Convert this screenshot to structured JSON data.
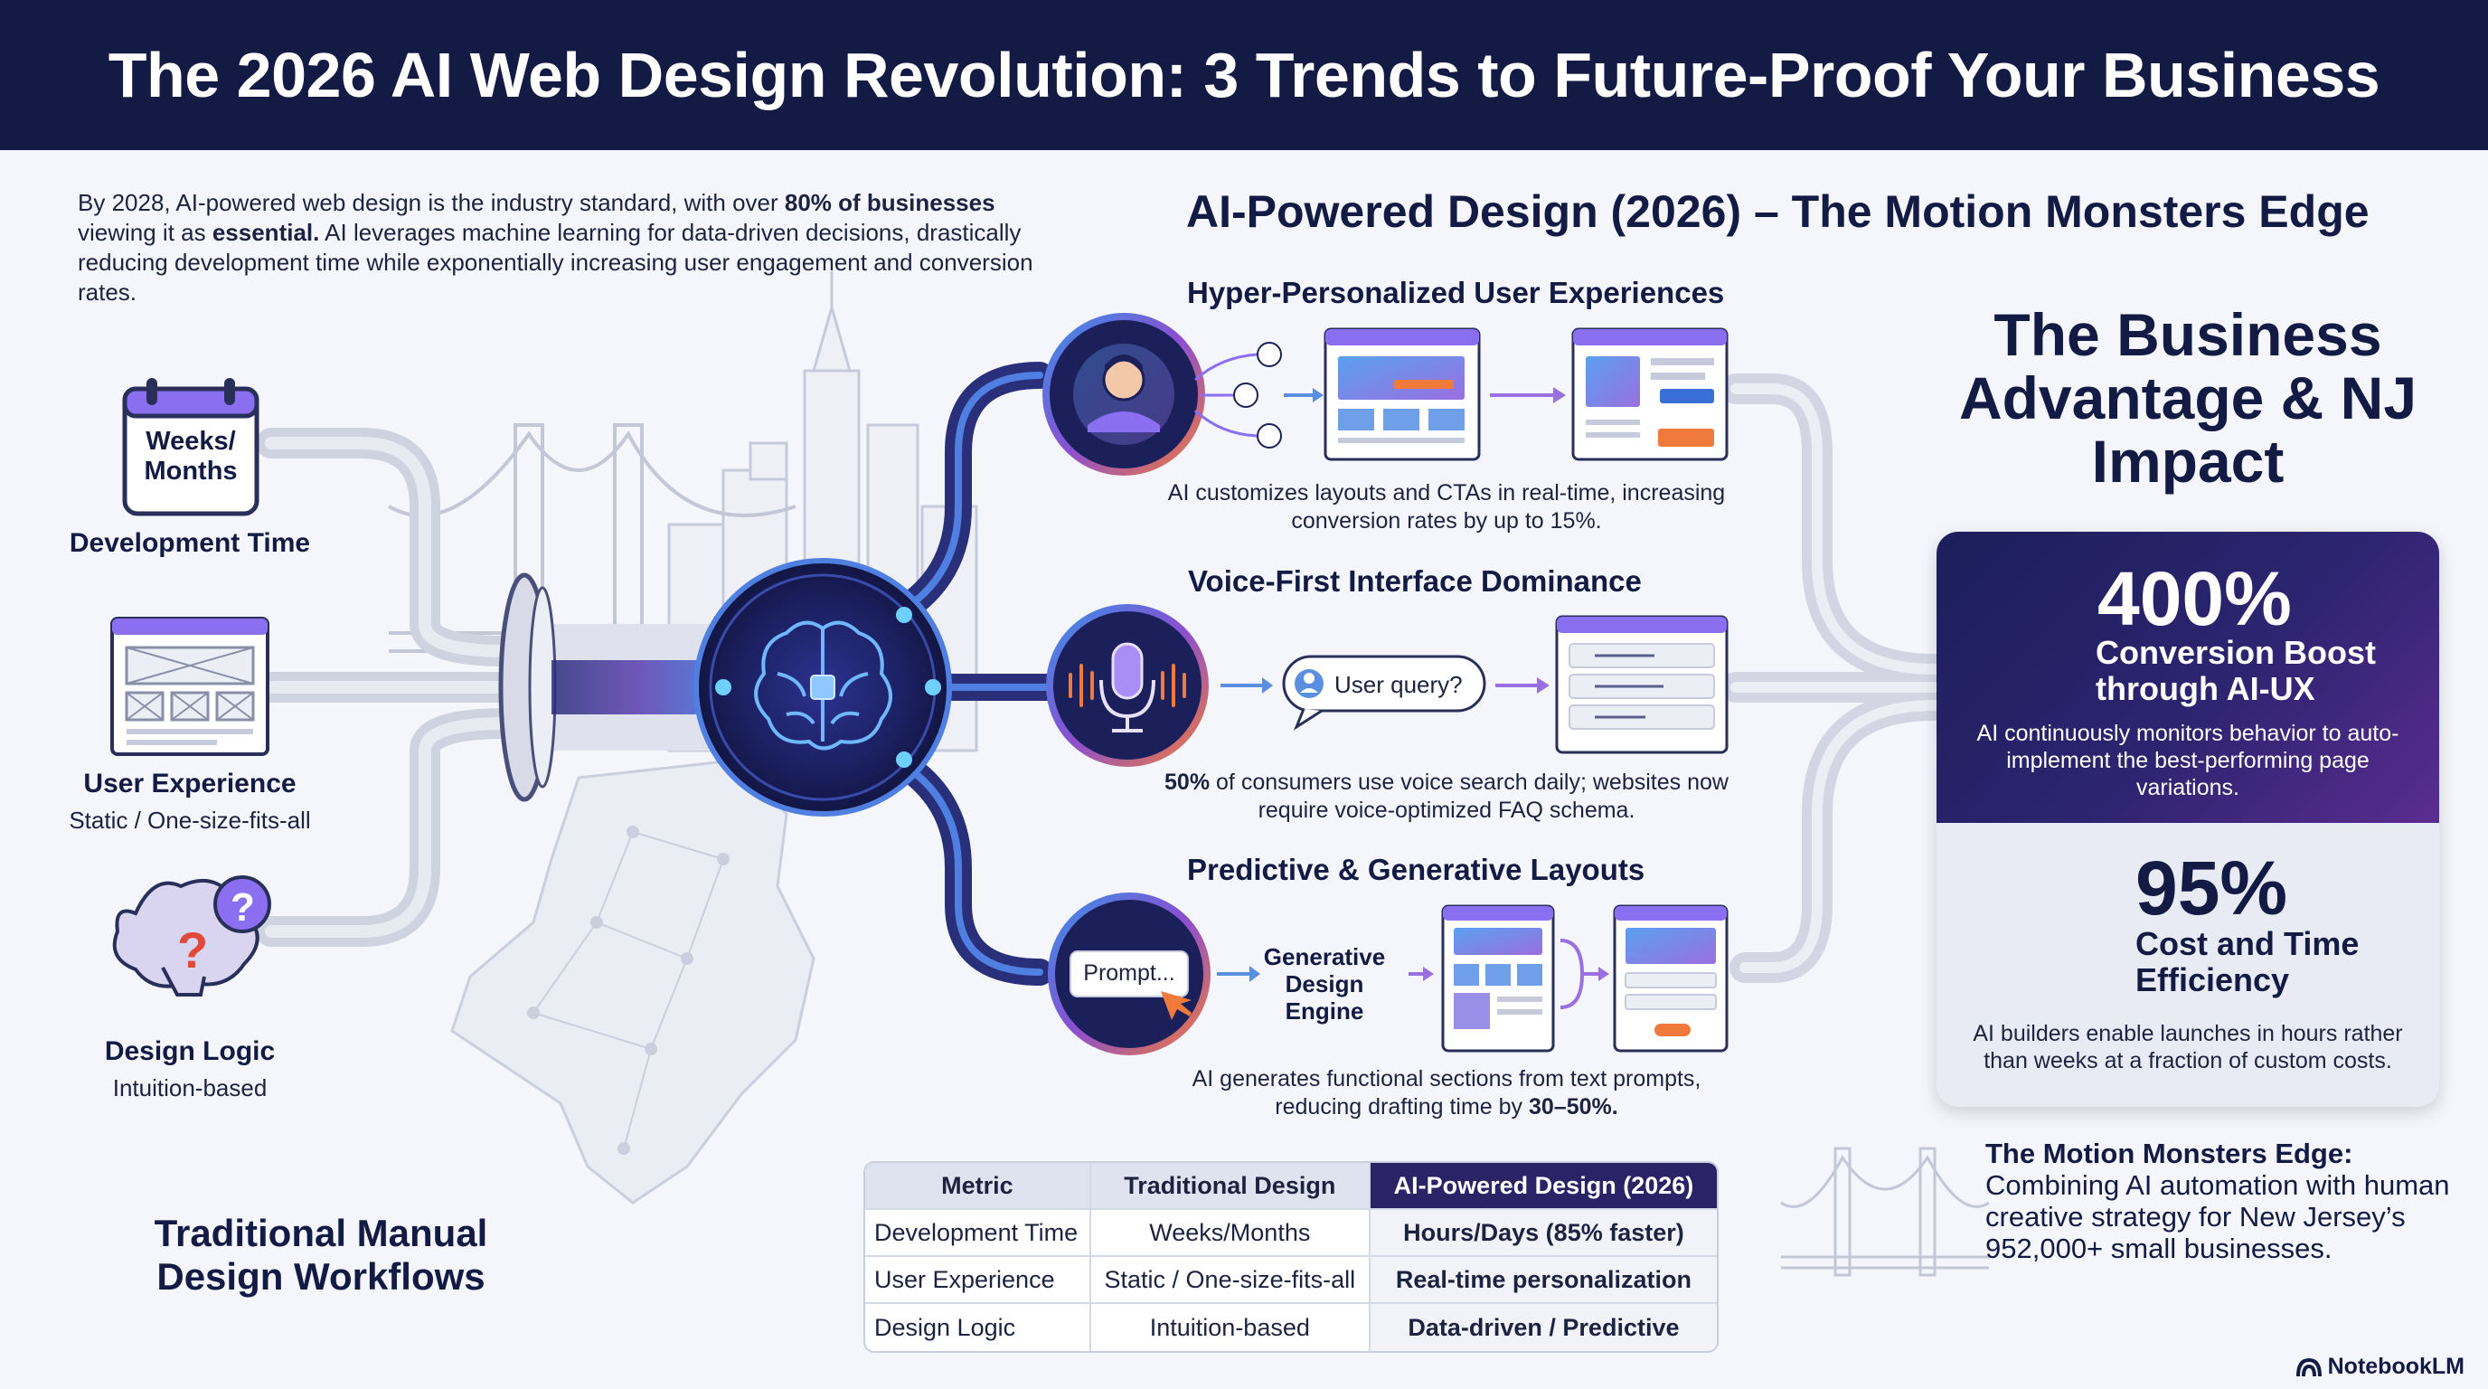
{
  "header": {
    "title": "The 2026 AI Web Design Revolution: 3 Trends to Future-Proof Your Business"
  },
  "intro": {
    "part1": "By 2028, AI-powered web design is the industry standard, with over ",
    "bold1": "80% of businesses",
    "part2": " viewing it as ",
    "bold2": "essential.",
    "part3": " AI leverages machine learning for data-driven decisions, drastically reducing development time while exponentially increasing user engagement and conversion rates."
  },
  "traditional": {
    "items": [
      {
        "title": "Development Time",
        "sub": "",
        "icon": "calendar-icon",
        "icon_text": "Weeks/\nMonths"
      },
      {
        "title": "User Experience",
        "sub": "Static / One-size-fits-all",
        "icon": "static-layout-icon"
      },
      {
        "title": "Design Logic",
        "sub": "Intuition-based",
        "icon": "brain-question-icon"
      }
    ],
    "title": "Traditional Manual Design Workflows"
  },
  "ai_section": {
    "title": "AI-Powered Design (2026) – The Motion Monsters Edge",
    "trends": [
      {
        "title": "Hyper-Personalized User Experiences",
        "desc": "AI customizes layouts and CTAs in real-time, increasing conversion rates by up to 15%."
      },
      {
        "title": "Voice-First Interface Dominance",
        "desc_bold": "50%",
        "desc": " of consumers use voice search daily; websites now require voice-optimized FAQ schema.",
        "query": "User query?"
      },
      {
        "title": "Predictive & Generative Layouts",
        "desc": "AI generates functional sections from text prompts, reducing drafting time by ",
        "desc_bold": "30–50%.",
        "prompt": "Prompt...",
        "engine": "Generative Design Engine"
      }
    ]
  },
  "business": {
    "title": "The Business Advantage & NJ Impact",
    "stats": [
      {
        "value": "400%",
        "label": "Conversion Boost through AI-UX",
        "desc": "AI continuously monitors behavior to auto-implement the best-performing page variations."
      },
      {
        "value": "95%",
        "label": "Cost and Time Efficiency",
        "desc": "AI builders enable launches in hours rather than weeks at a fraction of custom costs."
      }
    ],
    "edge_bold": "The Motion Monsters Edge:",
    "edge_text": "Combining AI automation with human creative strategy for New Jersey’s 952,000+ small businesses."
  },
  "table": {
    "headers": [
      "Metric",
      "Traditional Design",
      "AI-Powered Design (2026)"
    ],
    "rows": [
      [
        "Development Time",
        "Weeks/Months",
        "Hours/Days (85% faster)"
      ],
      [
        "User Experience",
        "Static / One-size-fits-all",
        "Real-time personalization"
      ],
      [
        "Design Logic",
        "Intuition-based",
        "Data-driven / Predictive"
      ]
    ]
  },
  "brand": "NotebookLM",
  "colors": {
    "navy": "#131a44",
    "purple": "#6a3fb5",
    "blue": "#3b6fd8",
    "orange": "#f07a3c",
    "pipe": "#c8ccda"
  }
}
